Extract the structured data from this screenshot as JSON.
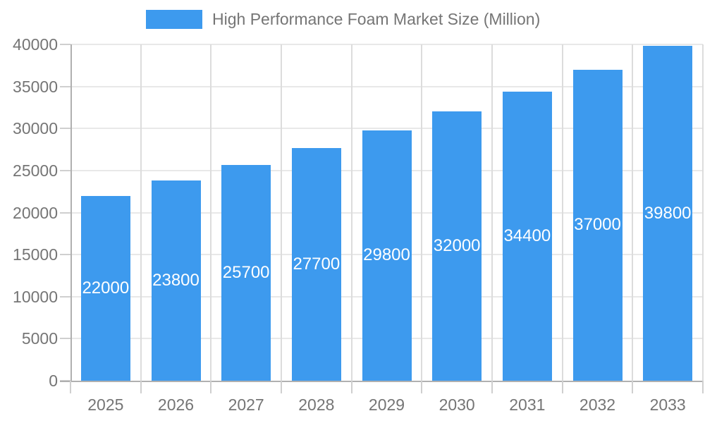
{
  "figure": {
    "background": "#FFFFFF"
  },
  "chart_data": {
    "type": "bar",
    "title": "High Performance Foam Market Size (Million)",
    "categories": [
      "2025",
      "2026",
      "2027",
      "2028",
      "2029",
      "2030",
      "2031",
      "2032",
      "2033"
    ],
    "values": [
      22000,
      23800,
      25700,
      27700,
      29800,
      32000,
      34400,
      37000,
      39800
    ],
    "xlabel": "",
    "ylabel": "",
    "ylim": [
      0,
      40000
    ],
    "ytick_step": 5000,
    "yticks": [
      0,
      5000,
      10000,
      15000,
      20000,
      25000,
      30000,
      35000,
      40000
    ],
    "grid": true,
    "legend_position": "top",
    "bar_color": "#3D9AEE",
    "bar_label_color": "#FFFFFF",
    "axis_text_color": "#757575",
    "gridline_color": "#E8E8E8",
    "vertical_gridline_color": "#DCDCDC",
    "axis_line_color": "#B0B0B0",
    "tick_color": "#CFCFCF"
  }
}
